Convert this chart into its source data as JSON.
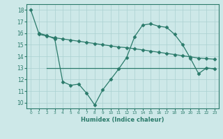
{
  "line1_x": [
    0,
    1,
    2,
    3,
    4,
    5,
    6,
    7,
    8,
    9,
    10,
    11,
    12,
    13,
    14,
    15,
    16,
    17,
    18,
    19,
    20,
    21,
    22,
    23
  ],
  "line1_y": [
    18.0,
    16.0,
    15.8,
    15.5,
    11.8,
    11.5,
    11.6,
    10.8,
    9.8,
    11.1,
    12.0,
    12.9,
    13.9,
    15.7,
    16.7,
    16.8,
    16.6,
    16.5,
    15.9,
    15.0,
    13.8,
    12.5,
    13.0,
    12.9
  ],
  "line2_x": [
    1,
    2,
    3,
    4,
    5,
    6,
    7,
    8,
    9,
    10,
    11,
    12,
    13,
    14,
    15,
    16,
    17,
    18,
    19,
    20,
    21,
    22,
    23
  ],
  "line2_y": [
    15.9,
    15.75,
    15.6,
    15.5,
    15.4,
    15.3,
    15.2,
    15.1,
    15.0,
    14.9,
    14.8,
    14.75,
    14.65,
    14.55,
    14.45,
    14.35,
    14.25,
    14.15,
    14.05,
    13.95,
    13.85,
    13.8,
    13.75
  ],
  "line3_x": [
    2,
    3,
    4,
    5,
    6,
    7,
    8,
    9,
    10,
    11,
    12,
    13,
    14,
    15,
    16,
    17,
    18,
    19,
    20,
    21,
    22,
    23
  ],
  "line3_y": [
    13.0,
    13.0,
    13.0,
    13.0,
    13.0,
    13.0,
    13.0,
    13.0,
    13.0,
    13.0,
    13.0,
    13.0,
    13.0,
    13.0,
    13.0,
    13.0,
    13.0,
    13.0,
    13.0,
    13.0,
    13.0,
    13.0
  ],
  "color": "#2a7a6a",
  "bg_color": "#cde8e8",
  "grid_color": "#aad0d0",
  "xlabel": "Humidex (Indice chaleur)",
  "xlim": [
    -0.5,
    23.5
  ],
  "ylim": [
    9.5,
    18.5
  ],
  "yticks": [
    10,
    11,
    12,
    13,
    14,
    15,
    16,
    17,
    18
  ],
  "xticks": [
    0,
    1,
    2,
    3,
    4,
    5,
    6,
    7,
    8,
    9,
    10,
    11,
    12,
    13,
    14,
    15,
    16,
    17,
    18,
    19,
    20,
    21,
    22,
    23
  ],
  "marker": "D",
  "markersize": 2.5,
  "linewidth": 0.9
}
